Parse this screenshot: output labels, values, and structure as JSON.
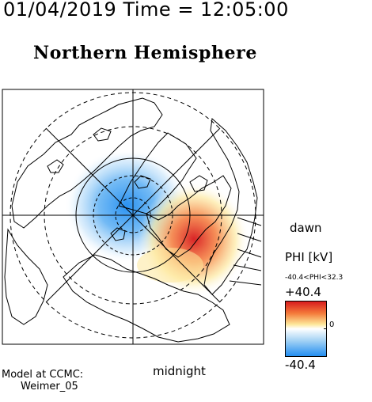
{
  "header": {
    "datetime": "01/04/2019 Time = 12:05:00",
    "title": "Northern Hemisphere"
  },
  "map": {
    "labels": {
      "dawn": "dawn",
      "midnight": "midnight"
    },
    "features": [
      "polar-grid",
      "coastlines",
      "potential-contours"
    ]
  },
  "colorbar": {
    "variable": "PHI [kV]",
    "range_text": "-40.4<PHI<32.3",
    "max_label": "+40.4",
    "min_label": "-40.4",
    "zero_label": "0",
    "max": 40.4,
    "min": -40.4,
    "colors": {
      "high": "#d7191c",
      "mid_high": "#f47a3a",
      "mid_pos": "#fde89a",
      "zero": "#ffffff",
      "mid_neg": "#a9d5f5",
      "low": "#1f8cf0"
    }
  },
  "footer": {
    "model_line1": "Model at CCMC:",
    "model_line2": "Weimer_05"
  }
}
